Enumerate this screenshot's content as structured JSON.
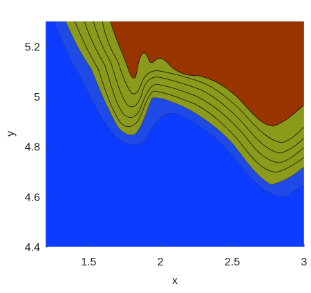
{
  "chart_data": {
    "type": "contour",
    "xlabel": "x",
    "ylabel": "y",
    "xlim": [
      1.2,
      3
    ],
    "ylim": [
      4.4,
      5.3
    ],
    "xticks": [
      1.5,
      2,
      2.5,
      3
    ],
    "yticks": [
      4.4,
      4.6,
      4.8,
      5,
      5.2
    ]
  }
}
